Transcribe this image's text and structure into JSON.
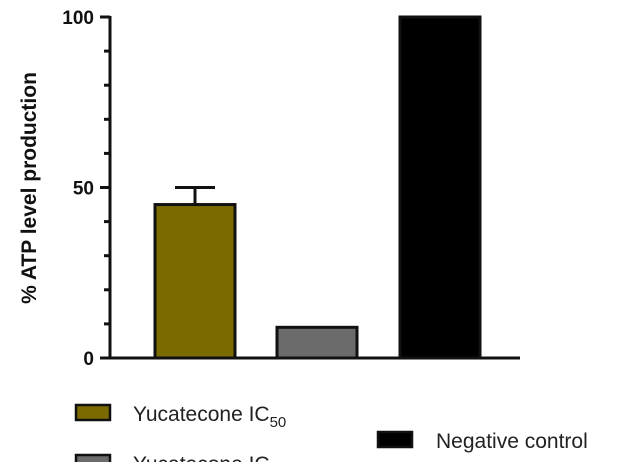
{
  "chart_data": {
    "type": "bar",
    "title": "",
    "xlabel": "",
    "ylabel": "% ATP level production",
    "ylim": [
      0,
      100
    ],
    "yticks": [
      "0",
      "50",
      "100"
    ],
    "grid": false,
    "legend_placement": "bottom",
    "categories": [
      "Yucatecone IC50",
      "Yucatecone IC",
      "Negative control"
    ],
    "values": [
      45,
      9,
      100
    ],
    "error_upper": [
      50,
      null,
      null
    ],
    "colors": [
      "#7a6a00",
      "#6b6b6b",
      "#000000"
    ],
    "legend": [
      {
        "text": "Yucatecone IC",
        "sub": "50",
        "color": "#7a6a00"
      },
      {
        "text": "Yucatecone IC",
        "sub": "",
        "color": "#6b6b6b"
      },
      {
        "text": "Negative control",
        "sub": "",
        "color": "#000000"
      }
    ]
  }
}
